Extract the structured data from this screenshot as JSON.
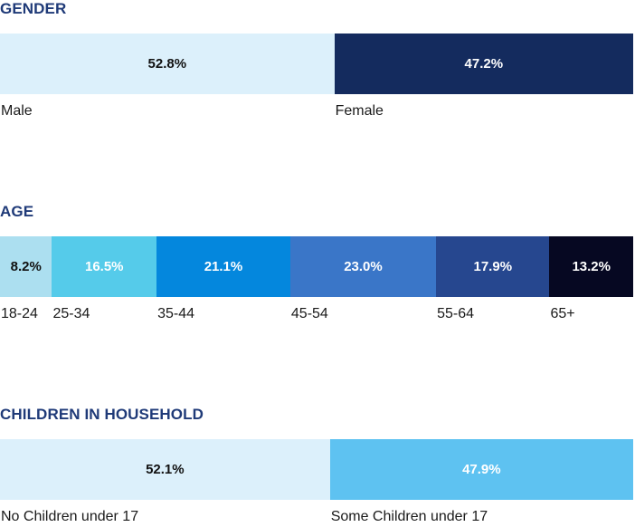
{
  "chart_data": [
    {
      "type": "bar",
      "title": "GENDER",
      "categories": [
        "Male",
        "Female"
      ],
      "values": [
        52.8,
        47.2
      ],
      "value_labels": [
        "52.8%",
        "47.2%"
      ],
      "colors": [
        "#dcf0fb",
        "#142b5e"
      ],
      "text_colors": [
        "#111111",
        "#ffffff"
      ]
    },
    {
      "type": "bar",
      "title": "AGE",
      "categories": [
        "18-24",
        "25-34",
        "35-44",
        "45-54",
        "55-64",
        "65+"
      ],
      "values": [
        8.2,
        16.5,
        21.1,
        23.0,
        17.9,
        13.2
      ],
      "value_labels": [
        "8.2%",
        "16.5%",
        "21.1%",
        "23.0%",
        "17.9%",
        "13.2%"
      ],
      "colors": [
        "#acdff0",
        "#55cbea",
        "#0487dd",
        "#3a76c8",
        "#26478f",
        "#060822"
      ],
      "text_colors": [
        "#111111",
        "#ffffff",
        "#ffffff",
        "#ffffff",
        "#ffffff",
        "#ffffff"
      ]
    },
    {
      "type": "bar",
      "title": "CHILDREN IN HOUSEHOLD",
      "categories": [
        "No Children under 17",
        "Some Children under 17"
      ],
      "values": [
        52.1,
        47.9
      ],
      "value_labels": [
        "52.1%",
        "47.9%"
      ],
      "colors": [
        "#dcf0fb",
        "#5ec2f1"
      ],
      "text_colors": [
        "#111111",
        "#ffffff"
      ]
    }
  ]
}
